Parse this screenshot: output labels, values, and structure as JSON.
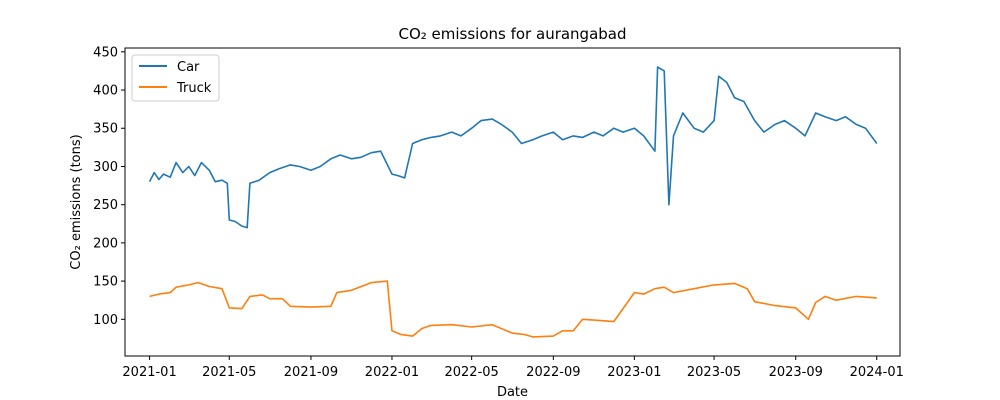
{
  "chart_data": {
    "type": "line",
    "title": "CO₂ emissions for aurangabad",
    "xlabel": "Date",
    "ylabel": "CO₂ emissions (tons)",
    "xlim": [
      "2020-11-25",
      "2024-02-05"
    ],
    "ylim": [
      52,
      455
    ],
    "xticks": [
      "2021-01",
      "2021-05",
      "2021-09",
      "2022-01",
      "2022-05",
      "2022-09",
      "2023-01",
      "2023-05",
      "2023-09",
      "2024-01"
    ],
    "yticks": [
      100,
      150,
      200,
      250,
      300,
      350,
      400,
      450
    ],
    "grid": false,
    "legend": "top-left",
    "series": [
      {
        "name": "Car",
        "color": "#1f77b4",
        "points": [
          [
            "2021-01-01",
            280
          ],
          [
            "2021-01-08",
            292
          ],
          [
            "2021-01-15",
            283
          ],
          [
            "2021-01-22",
            290
          ],
          [
            "2021-02-01",
            286
          ],
          [
            "2021-02-10",
            305
          ],
          [
            "2021-02-20",
            292
          ],
          [
            "2021-03-01",
            300
          ],
          [
            "2021-03-10",
            288
          ],
          [
            "2021-03-20",
            305
          ],
          [
            "2021-04-01",
            295
          ],
          [
            "2021-04-10",
            280
          ],
          [
            "2021-04-20",
            282
          ],
          [
            "2021-04-28",
            278
          ],
          [
            "2021-05-01",
            230
          ],
          [
            "2021-05-10",
            228
          ],
          [
            "2021-05-20",
            222
          ],
          [
            "2021-05-28",
            220
          ],
          [
            "2021-06-01",
            278
          ],
          [
            "2021-06-15",
            282
          ],
          [
            "2021-07-01",
            292
          ],
          [
            "2021-07-15",
            297
          ],
          [
            "2021-08-01",
            302
          ],
          [
            "2021-08-15",
            300
          ],
          [
            "2021-09-01",
            295
          ],
          [
            "2021-09-15",
            300
          ],
          [
            "2021-10-01",
            310
          ],
          [
            "2021-10-15",
            315
          ],
          [
            "2021-11-01",
            310
          ],
          [
            "2021-11-15",
            312
          ],
          [
            "2021-12-01",
            318
          ],
          [
            "2021-12-15",
            320
          ],
          [
            "2022-01-01",
            290
          ],
          [
            "2022-01-10",
            288
          ],
          [
            "2022-01-20",
            285
          ],
          [
            "2022-02-01",
            330
          ],
          [
            "2022-02-15",
            335
          ],
          [
            "2022-03-01",
            338
          ],
          [
            "2022-03-15",
            340
          ],
          [
            "2022-04-01",
            345
          ],
          [
            "2022-04-15",
            340
          ],
          [
            "2022-05-01",
            350
          ],
          [
            "2022-05-15",
            360
          ],
          [
            "2022-06-01",
            362
          ],
          [
            "2022-06-15",
            355
          ],
          [
            "2022-07-01",
            345
          ],
          [
            "2022-07-15",
            330
          ],
          [
            "2022-08-01",
            335
          ],
          [
            "2022-08-15",
            340
          ],
          [
            "2022-09-01",
            345
          ],
          [
            "2022-09-15",
            335
          ],
          [
            "2022-10-01",
            340
          ],
          [
            "2022-10-15",
            338
          ],
          [
            "2022-11-01",
            345
          ],
          [
            "2022-11-15",
            340
          ],
          [
            "2022-12-01",
            350
          ],
          [
            "2022-12-15",
            345
          ],
          [
            "2023-01-01",
            350
          ],
          [
            "2023-01-15",
            340
          ],
          [
            "2023-02-01",
            320
          ],
          [
            "2023-02-05",
            430
          ],
          [
            "2023-02-15",
            425
          ],
          [
            "2023-02-22",
            250
          ],
          [
            "2023-03-01",
            340
          ],
          [
            "2023-03-15",
            370
          ],
          [
            "2023-04-01",
            350
          ],
          [
            "2023-04-15",
            345
          ],
          [
            "2023-05-01",
            360
          ],
          [
            "2023-05-08",
            418
          ],
          [
            "2023-05-20",
            410
          ],
          [
            "2023-06-01",
            390
          ],
          [
            "2023-06-15",
            385
          ],
          [
            "2023-07-01",
            360
          ],
          [
            "2023-07-15",
            345
          ],
          [
            "2023-08-01",
            355
          ],
          [
            "2023-08-15",
            360
          ],
          [
            "2023-09-01",
            350
          ],
          [
            "2023-09-15",
            340
          ],
          [
            "2023-10-01",
            370
          ],
          [
            "2023-10-15",
            365
          ],
          [
            "2023-11-01",
            360
          ],
          [
            "2023-11-15",
            365
          ],
          [
            "2023-12-01",
            355
          ],
          [
            "2023-12-15",
            350
          ],
          [
            "2024-01-01",
            330
          ]
        ]
      },
      {
        "name": "Truck",
        "color": "#ff7f0e",
        "points": [
          [
            "2021-01-01",
            130
          ],
          [
            "2021-01-15",
            133
          ],
          [
            "2021-02-01",
            135
          ],
          [
            "2021-02-10",
            142
          ],
          [
            "2021-03-01",
            145
          ],
          [
            "2021-03-15",
            148
          ],
          [
            "2021-04-01",
            143
          ],
          [
            "2021-04-20",
            140
          ],
          [
            "2021-05-01",
            115
          ],
          [
            "2021-05-20",
            114
          ],
          [
            "2021-06-01",
            130
          ],
          [
            "2021-06-20",
            132
          ],
          [
            "2021-07-01",
            127
          ],
          [
            "2021-07-20",
            127
          ],
          [
            "2021-08-01",
            117
          ],
          [
            "2021-09-01",
            116
          ],
          [
            "2021-10-01",
            117
          ],
          [
            "2021-10-10",
            135
          ],
          [
            "2021-11-01",
            138
          ],
          [
            "2021-12-01",
            148
          ],
          [
            "2021-12-25",
            150
          ],
          [
            "2022-01-01",
            85
          ],
          [
            "2022-01-15",
            80
          ],
          [
            "2022-02-01",
            78
          ],
          [
            "2022-02-15",
            88
          ],
          [
            "2022-03-01",
            92
          ],
          [
            "2022-04-01",
            93
          ],
          [
            "2022-05-01",
            90
          ],
          [
            "2022-06-01",
            93
          ],
          [
            "2022-07-01",
            82
          ],
          [
            "2022-07-20",
            80
          ],
          [
            "2022-08-01",
            77
          ],
          [
            "2022-09-01",
            78
          ],
          [
            "2022-09-15",
            85
          ],
          [
            "2022-10-01",
            85
          ],
          [
            "2022-10-15",
            100
          ],
          [
            "2022-11-01",
            99
          ],
          [
            "2022-12-01",
            97
          ],
          [
            "2023-01-01",
            135
          ],
          [
            "2023-01-15",
            133
          ],
          [
            "2023-02-01",
            140
          ],
          [
            "2023-02-15",
            142
          ],
          [
            "2023-03-01",
            135
          ],
          [
            "2023-04-01",
            140
          ],
          [
            "2023-05-01",
            145
          ],
          [
            "2023-06-01",
            147
          ],
          [
            "2023-06-20",
            140
          ],
          [
            "2023-07-01",
            123
          ],
          [
            "2023-08-01",
            118
          ],
          [
            "2023-09-01",
            115
          ],
          [
            "2023-09-20",
            100
          ],
          [
            "2023-10-01",
            122
          ],
          [
            "2023-10-15",
            130
          ],
          [
            "2023-11-01",
            125
          ],
          [
            "2023-12-01",
            130
          ],
          [
            "2024-01-01",
            128
          ]
        ]
      }
    ]
  }
}
